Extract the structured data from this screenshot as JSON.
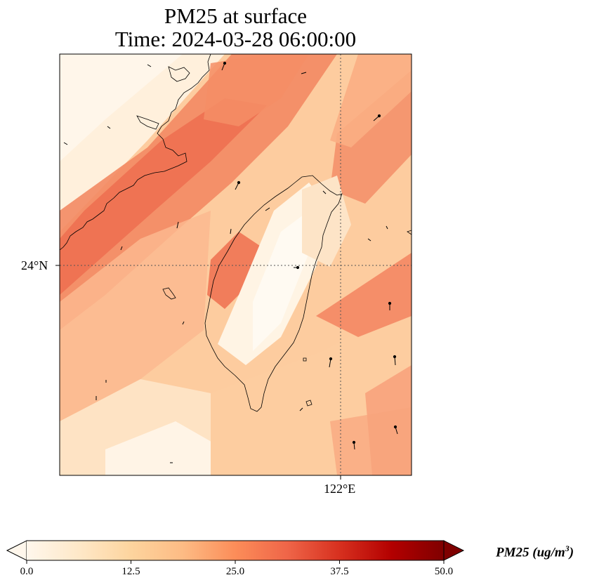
{
  "title": {
    "line1": "PM25 at surface",
    "line2": "Time: 2024-03-28 06:00:00"
  },
  "map": {
    "lat_tick_label": "24°N",
    "lon_tick_label": "122°E",
    "gridline_style": "dotted",
    "coastline_color": "#000000",
    "features": [
      "pm25-field",
      "wind-vectors",
      "coastline-taiwan",
      "coastline-china"
    ]
  },
  "colorbar": {
    "label_main": "PM25 (ug/m",
    "label_sup": "3",
    "label_end": ")",
    "ticks": [
      "0.0",
      "12.5",
      "25.0",
      "37.5",
      "50.0"
    ],
    "min": 0,
    "max": 50,
    "extend": "both",
    "colormap": "OrRd",
    "stops": [
      "#fff7ec",
      "#fee8c8",
      "#fdd49e",
      "#fdbb84",
      "#fc8d59",
      "#ef6548",
      "#d7301f",
      "#b30000",
      "#7f0000"
    ]
  }
}
